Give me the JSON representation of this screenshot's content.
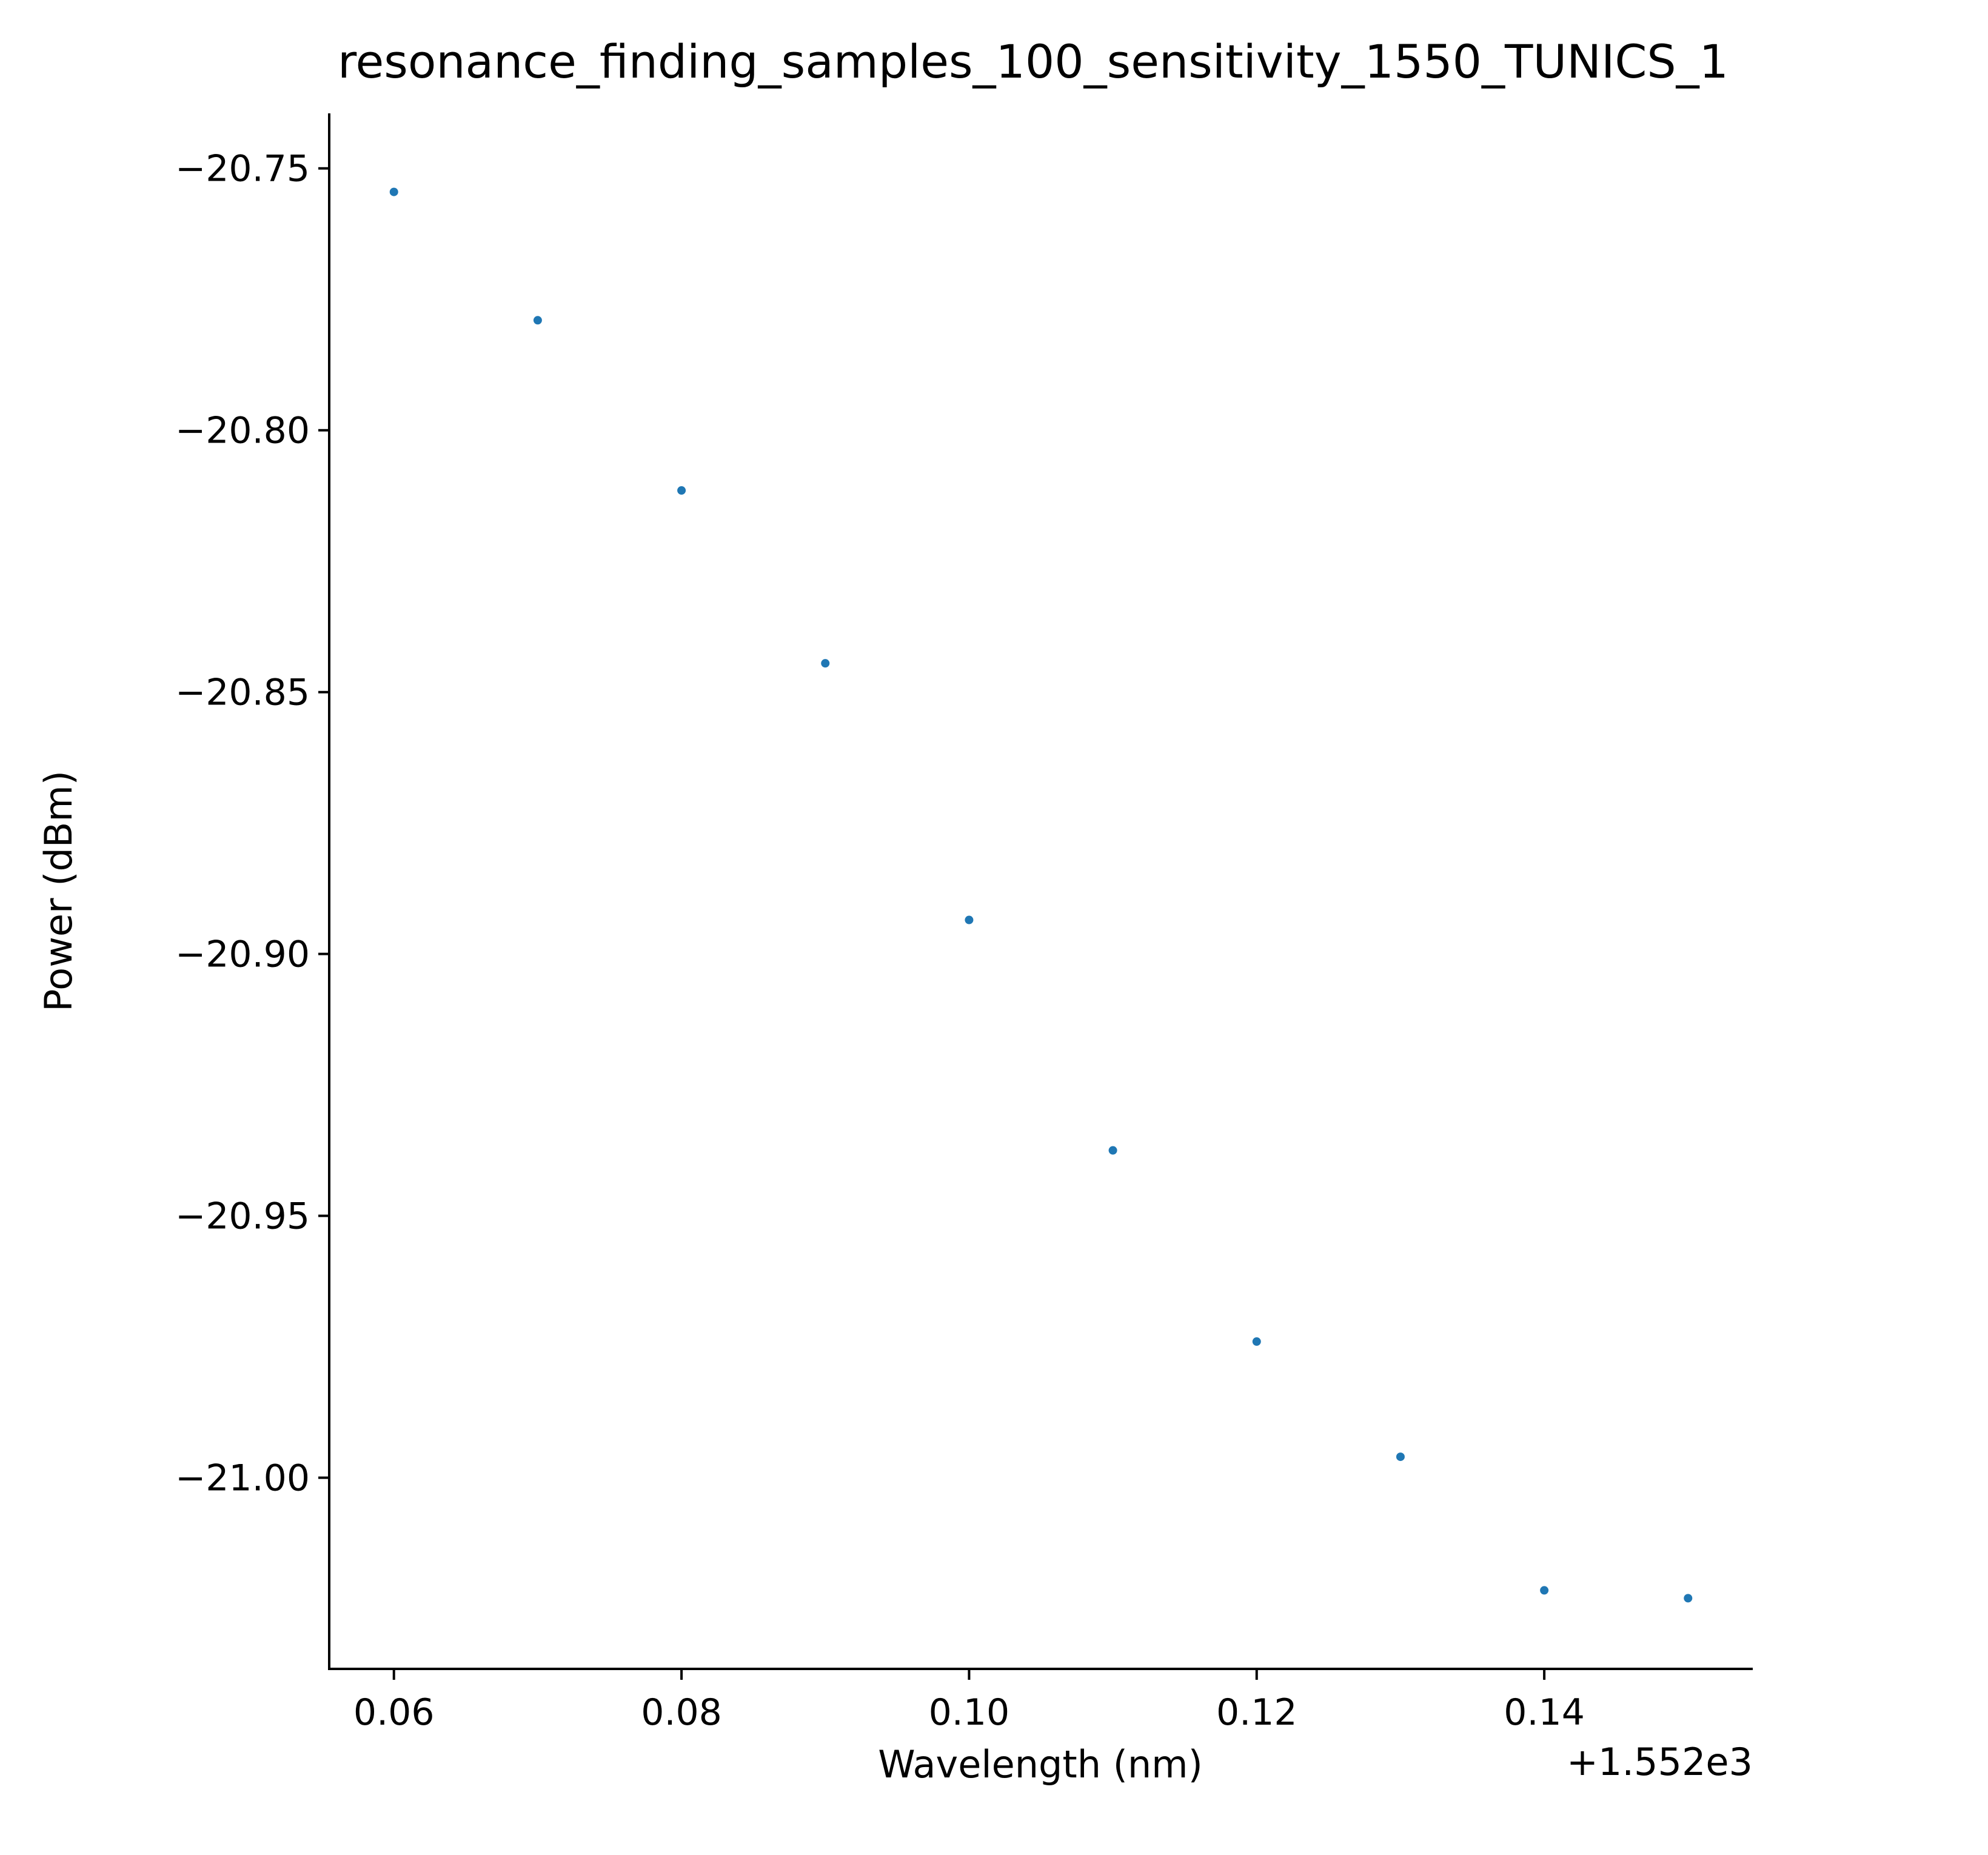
{
  "chart_data": {
    "type": "scatter",
    "title": "resonance_finding_samples_100_sensitivity_1550_TUNICS_1",
    "xlabel": "Wavelength (nm)",
    "ylabel": "Power (dBm)",
    "x_offset_label": "+1.552e3",
    "x_offset": 1552,
    "x": [
      0.06,
      0.07,
      0.08,
      0.09,
      0.1,
      0.11,
      0.12,
      0.13,
      0.14,
      0.15
    ],
    "y": [
      -20.7545,
      -20.779,
      -20.8115,
      -20.8445,
      -20.8935,
      -20.9375,
      -20.974,
      -20.996,
      -21.0215,
      -21.023
    ],
    "xlim": [
      0.0555,
      0.1545
    ],
    "ylim": [
      -21.0365,
      -20.7395
    ],
    "xticks": [
      0.06,
      0.08,
      0.1,
      0.12,
      0.14
    ],
    "xtick_labels": [
      "0.06",
      "0.08",
      "0.10",
      "0.12",
      "0.14"
    ],
    "yticks": [
      -20.75,
      -20.8,
      -20.85,
      -20.9,
      -20.95,
      -21.0
    ],
    "ytick_labels": [
      "−20.75",
      "−20.80",
      "−20.85",
      "−20.90",
      "−20.95",
      "−21.00"
    ],
    "marker_color": "#1f77b4",
    "grid": false,
    "legend": false
  }
}
